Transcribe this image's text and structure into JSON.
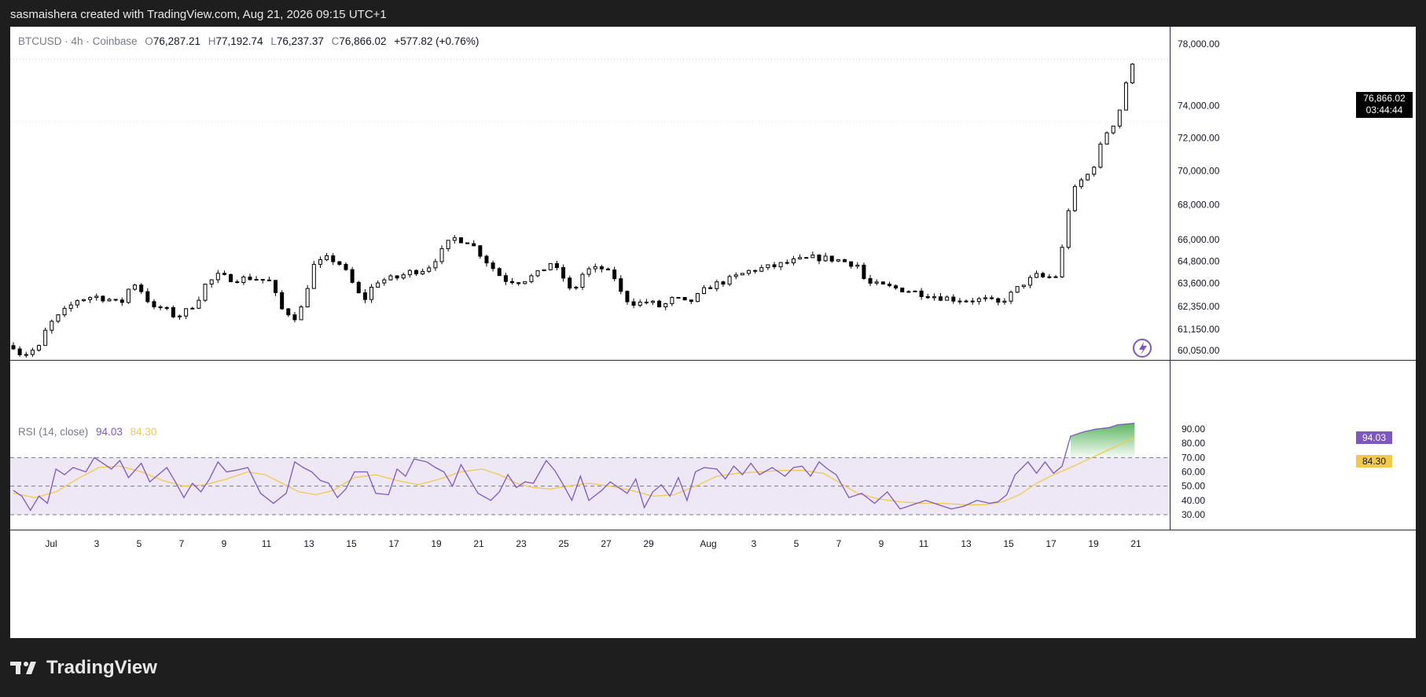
{
  "header": {
    "attribution": "sasmaishera created with TradingView.com, Aug 21, 2026 09:15 UTC+1"
  },
  "legend": {
    "symbol": "BTCUSD",
    "interval": "4h",
    "exchange": "Coinbase",
    "o_label": "O",
    "o": "76,287.21",
    "h_label": "H",
    "h": "77,192.74",
    "l_label": "L",
    "l": "76,237.37",
    "c_label": "C",
    "c": "76,866.02",
    "change": "+577.82 (+0.76%)"
  },
  "price_tag": {
    "price": "76,866.02",
    "countdown": "03:44:44"
  },
  "rsi_legend": {
    "title": "RSI (14, close)",
    "rsi": "94.03",
    "ma": "84.30"
  },
  "rsi_tags": {
    "rsi": "94.03",
    "ma": "84.30"
  },
  "logo_text": "TradingView",
  "colors": {
    "rsi_line": "#7e57c2",
    "rsi_ma": "#f2c94c",
    "band_fill": "#ede7f6",
    "candle_up": "#ffffff",
    "candle_down": "#000000",
    "overbought_fill": "#4caf50"
  },
  "chart_data": [
    {
      "type": "candlestick",
      "x_ticks": [
        "Jul",
        "3",
        "5",
        "7",
        "9",
        "11",
        "13",
        "15",
        "17",
        "19",
        "21",
        "23",
        "25",
        "27",
        "29",
        "Aug",
        "3",
        "5",
        "7",
        "9",
        "11",
        "13",
        "15",
        "17",
        "19",
        "21"
      ],
      "y_ticks": [
        "78,000.00",
        "74,000.00",
        "72,000.00",
        "70,000.00",
        "68,000.00",
        "66,000.00",
        "64,800.00",
        "63,600.00",
        "62,350.00",
        "61,150.00",
        "60,050.00"
      ],
      "y_scale": "log",
      "horizontal_lines": [
        77000,
        73000
      ],
      "close_path": [
        [
          0,
          60300
        ],
        [
          4,
          59800
        ],
        [
          8,
          60000
        ],
        [
          12,
          60200
        ],
        [
          16,
          61300
        ],
        [
          20,
          61700
        ],
        [
          24,
          62100
        ],
        [
          30,
          62700
        ],
        [
          38,
          62900
        ],
        [
          46,
          62700
        ],
        [
          50,
          62400
        ],
        [
          56,
          63700
        ],
        [
          60,
          63200
        ],
        [
          66,
          62200
        ],
        [
          70,
          62300
        ],
        [
          76,
          61800
        ],
        [
          80,
          62000
        ],
        [
          86,
          62600
        ],
        [
          90,
          63500
        ],
        [
          96,
          64000
        ],
        [
          104,
          63800
        ],
        [
          112,
          63900
        ],
        [
          120,
          63700
        ],
        [
          126,
          62200
        ],
        [
          132,
          61800
        ],
        [
          136,
          62400
        ],
        [
          140,
          64500
        ],
        [
          148,
          65000
        ],
        [
          154,
          64600
        ],
        [
          160,
          63400
        ],
        [
          164,
          62600
        ],
        [
          170,
          63700
        ],
        [
          180,
          63900
        ],
        [
          186,
          64200
        ],
        [
          194,
          64400
        ],
        [
          200,
          65200
        ],
        [
          206,
          66100
        ],
        [
          214,
          65900
        ],
        [
          222,
          64800
        ],
        [
          230,
          63800
        ],
        [
          238,
          63700
        ],
        [
          246,
          64100
        ],
        [
          252,
          64700
        ],
        [
          258,
          63900
        ],
        [
          262,
          63000
        ],
        [
          268,
          64300
        ],
        [
          276,
          64400
        ],
        [
          282,
          63900
        ],
        [
          286,
          62800
        ],
        [
          292,
          62500
        ],
        [
          298,
          62600
        ],
        [
          304,
          62300
        ],
        [
          310,
          62800
        ],
        [
          316,
          62500
        ],
        [
          320,
          62800
        ],
        [
          326,
          63400
        ],
        [
          336,
          63800
        ],
        [
          346,
          64300
        ],
        [
          356,
          64500
        ],
        [
          366,
          64800
        ],
        [
          376,
          65000
        ],
        [
          386,
          64900
        ],
        [
          396,
          64600
        ],
        [
          400,
          63600
        ],
        [
          410,
          63400
        ],
        [
          420,
          63200
        ],
        [
          432,
          62900
        ],
        [
          444,
          62700
        ],
        [
          456,
          62700
        ],
        [
          462,
          62500
        ],
        [
          468,
          63000
        ],
        [
          474,
          63600
        ],
        [
          480,
          64000
        ],
        [
          484,
          63900
        ],
        [
          490,
          64000
        ],
        [
          496,
          68500
        ],
        [
          500,
          69300
        ],
        [
          506,
          70000
        ],
        [
          512,
          72200
        ],
        [
          518,
          73200
        ],
        [
          522,
          75500
        ],
        [
          526,
          76866
        ]
      ],
      "last_value": 76866.02
    },
    {
      "type": "line",
      "name": "RSI (14, close)",
      "ylim": [
        20,
        100
      ],
      "y_ticks": [
        "90.00",
        "80.00",
        "70.00",
        "60.00",
        "50.00",
        "40.00",
        "30.00"
      ],
      "bands": [
        70,
        50,
        30
      ],
      "rsi_path": [
        [
          0,
          47
        ],
        [
          4,
          43
        ],
        [
          8,
          33
        ],
        [
          12,
          43
        ],
        [
          16,
          38
        ],
        [
          20,
          62
        ],
        [
          24,
          58
        ],
        [
          28,
          63
        ],
        [
          34,
          60
        ],
        [
          38,
          70
        ],
        [
          42,
          66
        ],
        [
          46,
          62
        ],
        [
          50,
          68
        ],
        [
          54,
          56
        ],
        [
          60,
          66
        ],
        [
          64,
          53
        ],
        [
          68,
          58
        ],
        [
          72,
          63
        ],
        [
          76,
          53
        ],
        [
          80,
          42
        ],
        [
          84,
          52
        ],
        [
          88,
          46
        ],
        [
          92,
          55
        ],
        [
          96,
          67
        ],
        [
          100,
          60
        ],
        [
          104,
          61
        ],
        [
          110,
          63
        ],
        [
          116,
          45
        ],
        [
          122,
          38
        ],
        [
          128,
          45
        ],
        [
          132,
          67
        ],
        [
          136,
          63
        ],
        [
          140,
          60
        ],
        [
          144,
          54
        ],
        [
          148,
          52
        ],
        [
          152,
          42
        ],
        [
          156,
          48
        ],
        [
          160,
          60
        ],
        [
          166,
          60
        ],
        [
          170,
          45
        ],
        [
          176,
          44
        ],
        [
          180,
          62
        ],
        [
          184,
          57
        ],
        [
          188,
          69
        ],
        [
          194,
          67
        ],
        [
          198,
          63
        ],
        [
          202,
          60
        ],
        [
          206,
          50
        ],
        [
          210,
          65
        ],
        [
          214,
          55
        ],
        [
          218,
          45
        ],
        [
          224,
          40
        ],
        [
          228,
          46
        ],
        [
          232,
          58
        ],
        [
          236,
          49
        ],
        [
          240,
          53
        ],
        [
          244,
          52
        ],
        [
          250,
          68
        ],
        [
          254,
          61
        ],
        [
          258,
          51
        ],
        [
          262,
          40
        ],
        [
          266,
          57
        ],
        [
          270,
          40
        ],
        [
          276,
          47
        ],
        [
          280,
          53
        ],
        [
          284,
          49
        ],
        [
          288,
          45
        ],
        [
          292,
          55
        ],
        [
          296,
          35
        ],
        [
          300,
          46
        ],
        [
          304,
          51
        ],
        [
          308,
          43
        ],
        [
          312,
          56
        ],
        [
          316,
          40
        ],
        [
          320,
          60
        ],
        [
          324,
          63
        ],
        [
          330,
          62
        ],
        [
          334,
          55
        ],
        [
          338,
          64
        ],
        [
          342,
          58
        ],
        [
          346,
          66
        ],
        [
          350,
          58
        ],
        [
          356,
          63
        ],
        [
          362,
          57
        ],
        [
          366,
          63
        ],
        [
          370,
          64
        ],
        [
          374,
          57
        ],
        [
          378,
          67
        ],
        [
          382,
          62
        ],
        [
          386,
          58
        ],
        [
          392,
          42
        ],
        [
          398,
          45
        ],
        [
          404,
          38
        ],
        [
          410,
          46
        ],
        [
          416,
          34
        ],
        [
          422,
          37
        ],
        [
          428,
          40
        ],
        [
          434,
          37
        ],
        [
          440,
          34
        ],
        [
          446,
          36
        ],
        [
          452,
          40
        ],
        [
          458,
          38
        ],
        [
          462,
          39
        ],
        [
          466,
          44
        ],
        [
          470,
          58
        ],
        [
          476,
          67
        ],
        [
          480,
          59
        ],
        [
          484,
          67
        ],
        [
          488,
          59
        ],
        [
          492,
          64
        ],
        [
          496,
          85
        ],
        [
          502,
          88
        ],
        [
          508,
          90
        ],
        [
          514,
          91
        ],
        [
          518,
          93
        ],
        [
          526,
          94
        ]
      ],
      "ma_path": [
        [
          0,
          45
        ],
        [
          10,
          42
        ],
        [
          20,
          46
        ],
        [
          30,
          55
        ],
        [
          40,
          63
        ],
        [
          50,
          64
        ],
        [
          60,
          60
        ],
        [
          70,
          54
        ],
        [
          80,
          50
        ],
        [
          90,
          51
        ],
        [
          100,
          55
        ],
        [
          110,
          60
        ],
        [
          118,
          58
        ],
        [
          126,
          52
        ],
        [
          134,
          46
        ],
        [
          142,
          44
        ],
        [
          150,
          47
        ],
        [
          160,
          56
        ],
        [
          170,
          58
        ],
        [
          180,
          54
        ],
        [
          190,
          51
        ],
        [
          200,
          55
        ],
        [
          210,
          60
        ],
        [
          220,
          62
        ],
        [
          228,
          58
        ],
        [
          236,
          52
        ],
        [
          244,
          49
        ],
        [
          252,
          48
        ],
        [
          260,
          50
        ],
        [
          270,
          52
        ],
        [
          280,
          50
        ],
        [
          290,
          47
        ],
        [
          300,
          43
        ],
        [
          310,
          44
        ],
        [
          320,
          50
        ],
        [
          330,
          57
        ],
        [
          340,
          59
        ],
        [
          350,
          60
        ],
        [
          360,
          61
        ],
        [
          370,
          61
        ],
        [
          380,
          59
        ],
        [
          388,
          52
        ],
        [
          396,
          45
        ],
        [
          406,
          41
        ],
        [
          416,
          39
        ],
        [
          426,
          38
        ],
        [
          436,
          38
        ],
        [
          446,
          37
        ],
        [
          456,
          37
        ],
        [
          464,
          39
        ],
        [
          472,
          44
        ],
        [
          480,
          52
        ],
        [
          488,
          58
        ],
        [
          496,
          63
        ],
        [
          506,
          70
        ],
        [
          516,
          77
        ],
        [
          526,
          84
        ]
      ],
      "last_value": 94.03,
      "ma_last_value": 84.3
    }
  ]
}
